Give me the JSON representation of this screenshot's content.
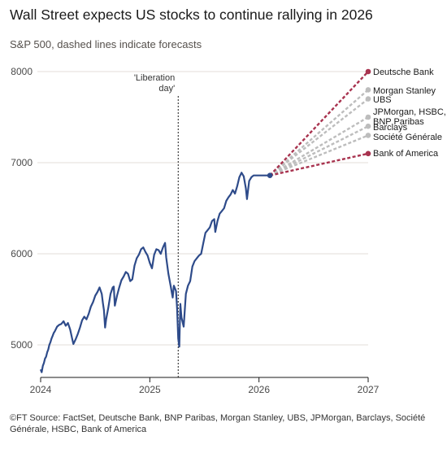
{
  "title": "Wall Street expects US stocks to continue rallying in 2026",
  "subtitle": "S&P 500, dashed lines indicate forecasts",
  "source": "©FT Source: FactSet, Deutsche Bank, BNP Paribas, Morgan Stanley, UBS, JPMorgan, Barclays, Société Générale, HSBC, Bank of America",
  "chart_data": {
    "type": "line",
    "title": "Wall Street expects US stocks to continue rallying in 2026",
    "subtitle": "S&P 500, dashed lines indicate forecasts",
    "xlim": [
      2024,
      2027
    ],
    "ylim": [
      4700,
      8000
    ],
    "x_ticks": [
      "2024",
      "2025",
      "2026",
      "2027"
    ],
    "y_ticks": [
      "5000",
      "6000",
      "7000",
      "8000"
    ],
    "grid": true,
    "annotation": {
      "label_lines": [
        "'Liberation",
        "day'"
      ],
      "x": 2025.26
    },
    "colors": {
      "history": "#2e4b8a",
      "bullish": "#a8334f",
      "consensus": "#bdbdbd",
      "grid": "#e3ddd8"
    },
    "history": {
      "name": "S&P 500",
      "points": [
        [
          2024.0,
          4730
        ],
        [
          2024.01,
          4700
        ],
        [
          2024.02,
          4770
        ],
        [
          2024.03,
          4800
        ],
        [
          2024.04,
          4850
        ],
        [
          2024.05,
          4870
        ],
        [
          2024.06,
          4920
        ],
        [
          2024.07,
          4950
        ],
        [
          2024.08,
          5000
        ],
        [
          2024.09,
          5030
        ],
        [
          2024.1,
          5070
        ],
        [
          2024.11,
          5100
        ],
        [
          2024.12,
          5130
        ],
        [
          2024.13,
          5150
        ],
        [
          2024.15,
          5200
        ],
        [
          2024.17,
          5220
        ],
        [
          2024.19,
          5230
        ],
        [
          2024.21,
          5260
        ],
        [
          2024.23,
          5210
        ],
        [
          2024.25,
          5240
        ],
        [
          2024.27,
          5170
        ],
        [
          2024.29,
          5060
        ],
        [
          2024.3,
          5010
        ],
        [
          2024.32,
          5060
        ],
        [
          2024.34,
          5120
        ],
        [
          2024.36,
          5190
        ],
        [
          2024.38,
          5270
        ],
        [
          2024.4,
          5310
        ],
        [
          2024.42,
          5280
        ],
        [
          2024.44,
          5340
        ],
        [
          2024.46,
          5420
        ],
        [
          2024.48,
          5470
        ],
        [
          2024.5,
          5540
        ],
        [
          2024.52,
          5580
        ],
        [
          2024.54,
          5630
        ],
        [
          2024.56,
          5560
        ],
        [
          2024.57,
          5460
        ],
        [
          2024.58,
          5380
        ],
        [
          2024.59,
          5190
        ],
        [
          2024.6,
          5280
        ],
        [
          2024.62,
          5410
        ],
        [
          2024.64,
          5560
        ],
        [
          2024.66,
          5630
        ],
        [
          2024.67,
          5640
        ],
        [
          2024.68,
          5430
        ],
        [
          2024.7,
          5540
        ],
        [
          2024.72,
          5630
        ],
        [
          2024.74,
          5710
        ],
        [
          2024.76,
          5750
        ],
        [
          2024.78,
          5800
        ],
        [
          2024.8,
          5780
        ],
        [
          2024.82,
          5700
        ],
        [
          2024.84,
          5720
        ],
        [
          2024.86,
          5870
        ],
        [
          2024.88,
          5950
        ],
        [
          2024.9,
          5990
        ],
        [
          2024.92,
          6050
        ],
        [
          2024.94,
          6070
        ],
        [
          2024.96,
          6020
        ],
        [
          2024.98,
          5980
        ],
        [
          2025.0,
          5900
        ],
        [
          2025.02,
          5840
        ],
        [
          2025.04,
          5990
        ],
        [
          2025.06,
          6050
        ],
        [
          2025.08,
          6040
        ],
        [
          2025.1,
          6000
        ],
        [
          2025.12,
          6070
        ],
        [
          2025.14,
          6120
        ],
        [
          2025.15,
          5960
        ],
        [
          2025.17,
          5780
        ],
        [
          2025.19,
          5650
        ],
        [
          2025.21,
          5520
        ],
        [
          2025.22,
          5650
        ],
        [
          2025.24,
          5590
        ],
        [
          2025.25,
          5400
        ],
        [
          2025.26,
          5070
        ],
        [
          2025.27,
          4980
        ],
        [
          2025.28,
          5450
        ],
        [
          2025.29,
          5300
        ],
        [
          2025.31,
          5200
        ],
        [
          2025.33,
          5560
        ],
        [
          2025.35,
          5650
        ],
        [
          2025.37,
          5700
        ],
        [
          2025.39,
          5860
        ],
        [
          2025.41,
          5920
        ],
        [
          2025.43,
          5950
        ],
        [
          2025.45,
          5980
        ],
        [
          2025.47,
          6000
        ],
        [
          2025.49,
          6120
        ],
        [
          2025.51,
          6230
        ],
        [
          2025.53,
          6260
        ],
        [
          2025.55,
          6290
        ],
        [
          2025.57,
          6360
        ],
        [
          2025.59,
          6380
        ],
        [
          2025.6,
          6240
        ],
        [
          2025.62,
          6360
        ],
        [
          2025.64,
          6440
        ],
        [
          2025.66,
          6470
        ],
        [
          2025.68,
          6500
        ],
        [
          2025.7,
          6580
        ],
        [
          2025.72,
          6620
        ],
        [
          2025.74,
          6650
        ],
        [
          2025.76,
          6700
        ],
        [
          2025.78,
          6660
        ],
        [
          2025.8,
          6740
        ],
        [
          2025.82,
          6840
        ],
        [
          2025.84,
          6890
        ],
        [
          2025.86,
          6850
        ],
        [
          2025.88,
          6720
        ],
        [
          2025.89,
          6600
        ],
        [
          2025.91,
          6800
        ],
        [
          2025.93,
          6840
        ],
        [
          2025.95,
          6860
        ],
        [
          2026.0,
          6860
        ],
        [
          2026.1,
          6860
        ]
      ]
    },
    "forecast_start": [
      2026.1,
      6860
    ],
    "forecasts": [
      {
        "name": "Deutsche Bank",
        "x": 2027,
        "y": 8000,
        "color": "#a8334f"
      },
      {
        "name": "Morgan Stanley",
        "x": 2027,
        "y": 7800,
        "color": "#bdbdbd"
      },
      {
        "name": "UBS",
        "x": 2027,
        "y": 7700,
        "color": "#bdbdbd"
      },
      {
        "name": "JPMorgan, HSBC, BNP Paribas",
        "x": 2027,
        "y": 7500,
        "color": "#bdbdbd",
        "label_lines": [
          "JPMorgan, HSBC,",
          "BNP Paribas"
        ]
      },
      {
        "name": "Barclays",
        "x": 2027,
        "y": 7400,
        "color": "#bdbdbd"
      },
      {
        "name": "Société Générale",
        "x": 2027,
        "y": 7300,
        "color": "#bdbdbd"
      },
      {
        "name": "Bank of America",
        "x": 2027,
        "y": 7100,
        "color": "#a8334f"
      }
    ]
  }
}
